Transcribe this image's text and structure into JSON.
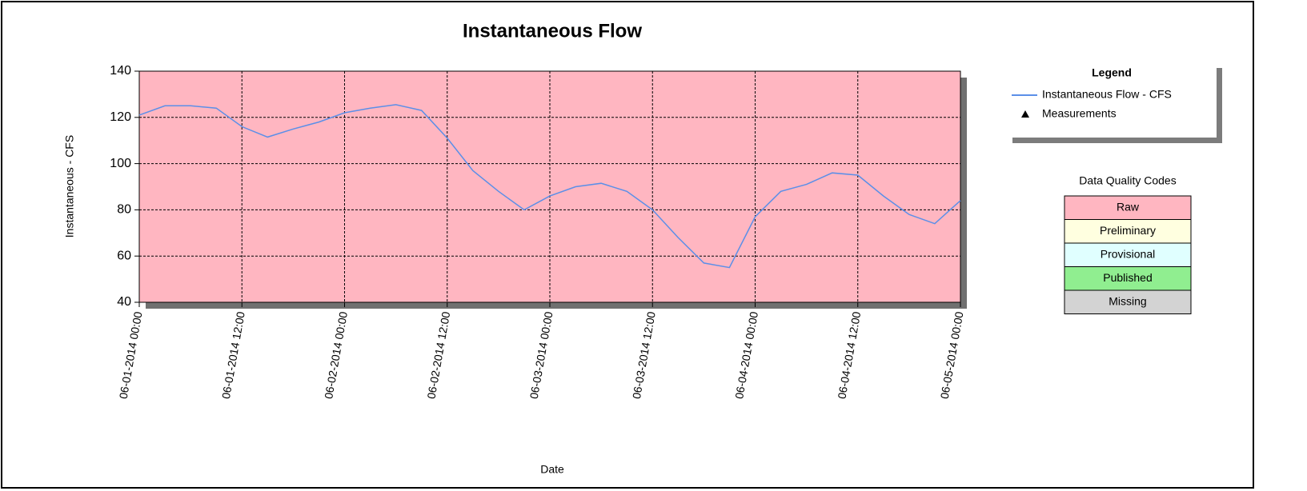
{
  "chart_data": {
    "type": "line",
    "title": "Instantaneous Flow",
    "x_label": "Date",
    "y_label": "Instantaneous - CFS",
    "x": [
      "06-01-2014 00:00",
      "06-01-2014 03:00",
      "06-01-2014 06:00",
      "06-01-2014 09:00",
      "06-01-2014 12:00",
      "06-01-2014 15:00",
      "06-01-2014 18:00",
      "06-01-2014 21:00",
      "06-02-2014 00:00",
      "06-02-2014 03:00",
      "06-02-2014 06:00",
      "06-02-2014 09:00",
      "06-02-2014 12:00",
      "06-02-2014 15:00",
      "06-02-2014 18:00",
      "06-02-2014 21:00",
      "06-03-2014 00:00",
      "06-03-2014 03:00",
      "06-03-2014 06:00",
      "06-03-2014 09:00",
      "06-03-2014 12:00",
      "06-03-2014 15:00",
      "06-03-2014 18:00",
      "06-03-2014 21:00",
      "06-04-2014 00:00",
      "06-04-2014 03:00",
      "06-04-2014 06:00",
      "06-04-2014 09:00",
      "06-04-2014 12:00",
      "06-04-2014 15:00",
      "06-04-2014 18:00",
      "06-04-2014 21:00",
      "06-05-2014 00:00"
    ],
    "series": [
      {
        "name": "Instantaneous Flow - CFS",
        "color": "#5b8fe8",
        "marker": "line",
        "values": [
          121,
          125,
          125,
          124,
          116,
          111.5,
          115,
          118,
          122,
          124,
          125.5,
          123,
          111,
          97,
          88,
          80,
          86,
          90,
          91.5,
          88,
          80,
          68,
          57,
          55,
          77,
          88,
          91,
          96,
          95,
          86,
          78,
          74,
          84
        ]
      },
      {
        "name": "Measurements",
        "color": "#000000",
        "marker": "triangle",
        "values": [
          null,
          null,
          null,
          null,
          null,
          null,
          null,
          null,
          null,
          null,
          null,
          null,
          null,
          null,
          null,
          null,
          null,
          null,
          null,
          null,
          null,
          null,
          null,
          null,
          null,
          null,
          null,
          null,
          null,
          null,
          null,
          null,
          null
        ]
      }
    ],
    "xlim": [
      "06-01-2014 00:00",
      "06-05-2014 00:00"
    ],
    "xticks": [
      "06-01-2014 00:00",
      "06-01-2014 12:00",
      "06-02-2014 00:00",
      "06-02-2014 12:00",
      "06-03-2014 00:00",
      "06-03-2014 12:00",
      "06-04-2014 00:00",
      "06-04-2014 12:00",
      "06-05-2014 00:00"
    ],
    "ylim": [
      40,
      140
    ],
    "yticks": [
      40,
      60,
      80,
      100,
      120,
      140
    ],
    "grid": true,
    "legend_title": "Legend",
    "legend": "right",
    "plot_background": "#ffb6c1",
    "quality_codes": {
      "title": "Data Quality Codes",
      "items": [
        {
          "label": "Raw",
          "color": "#ffb6c1"
        },
        {
          "label": "Preliminary",
          "color": "#ffffe0"
        },
        {
          "label": "Provisional",
          "color": "#e0ffff"
        },
        {
          "label": "Published",
          "color": "#90ee90"
        },
        {
          "label": "Missing",
          "color": "#d3d3d3"
        }
      ]
    }
  }
}
